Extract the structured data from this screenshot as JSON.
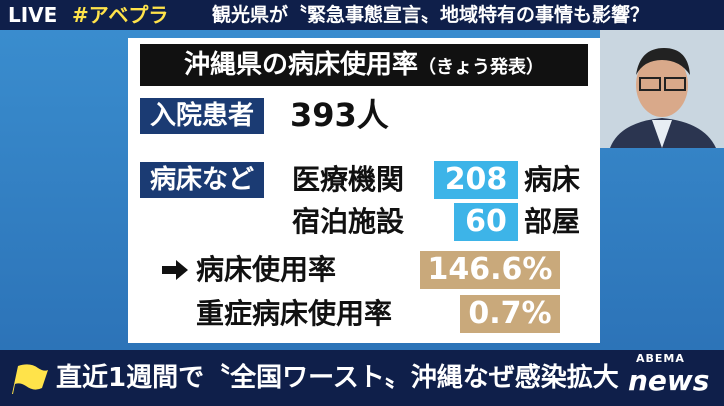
{
  "top_bar": {
    "live": "LIVE",
    "hashtag": "#アベプラ",
    "headline": "観光県が〝緊急事態宣言〟地域特有の事情も影響？"
  },
  "panel": {
    "title": "沖縄県の病床使用率",
    "title_note": "（きょう発表）",
    "inpatients": {
      "label": "入院患者",
      "value": "393人"
    },
    "beds": {
      "label": "病床など",
      "rows": [
        {
          "facility": "医療機関",
          "count": "208",
          "unit": "病床"
        },
        {
          "facility": "宿泊施設",
          "count": "60",
          "unit": "部屋"
        }
      ]
    },
    "rates": [
      {
        "label": "病床使用率",
        "value": "146.6%"
      },
      {
        "label": "重症病床使用率",
        "value": "0.7%"
      }
    ]
  },
  "bottom_bar": {
    "headline": "直近1週間で〝全国ワースト〟沖縄なぜ感染拡大"
  },
  "logo": {
    "brand": "ABEMA",
    "name": "news"
  }
}
